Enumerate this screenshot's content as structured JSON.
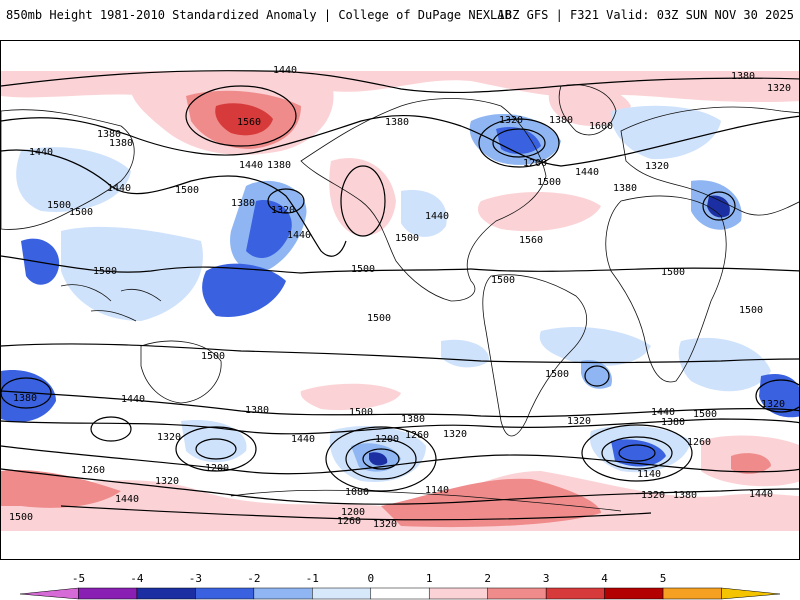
{
  "header": {
    "title_left": "850mb Height 1981-2010 Standardized Anomaly | College of DuPage NEXLAB",
    "title_right": "18Z GFS | F321 Valid: 03Z SUN NOV 30 2025"
  },
  "colorbar": {
    "tick_labels": [
      "-5",
      "-4",
      "-3",
      "-2",
      "-1",
      "0",
      "1",
      "2",
      "3",
      "4",
      "5"
    ],
    "colors": [
      "#d66ad6",
      "#8a1fb3",
      "#1b2fa3",
      "#3a62e0",
      "#8fb6f2",
      "#d7e8fb",
      "#ffffff",
      "#fbd3d6",
      "#ef8b8b",
      "#d63a3a",
      "#b30000",
      "#f5a020",
      "#f5c400"
    ]
  },
  "anomaly_colors": {
    "pos1": "#fbd3d6",
    "pos2": "#ef8b8b",
    "pos3": "#d63a3a",
    "neg1": "#cfe2fb",
    "neg2": "#8fb6f2",
    "neg3": "#3a62e0",
    "neg4": "#1b2fa3"
  },
  "contour_labels": [
    {
      "id": "l1440-top",
      "text": "1440"
    },
    {
      "id": "l1380-ne",
      "text": "1380"
    },
    {
      "id": "l1320-ne",
      "text": "1320"
    },
    {
      "id": "l1380-nw",
      "text": "1380"
    },
    {
      "id": "l1380-nw2",
      "text": "1380"
    },
    {
      "id": "l1440-nw",
      "text": "1440"
    },
    {
      "id": "l1560-pac",
      "text": "1560"
    },
    {
      "id": "l1440-pac",
      "text": "1440"
    },
    {
      "id": "l1380-pac",
      "text": "1380"
    },
    {
      "id": "l1440-asia",
      "text": "1440"
    },
    {
      "id": "l1500-asia",
      "text": "1500"
    },
    {
      "id": "l1500-asia2",
      "text": "1500"
    },
    {
      "id": "l1500-npac",
      "text": "1500"
    },
    {
      "id": "l1380-gulf",
      "text": "1380"
    },
    {
      "id": "l1320-gulf",
      "text": "1320"
    },
    {
      "id": "l1440-gulf",
      "text": "1440"
    },
    {
      "id": "l1380-can",
      "text": "1380"
    },
    {
      "id": "l1320-hud",
      "text": "1320"
    },
    {
      "id": "l1380-grl",
      "text": "1380"
    },
    {
      "id": "l1200-hud",
      "text": "1200"
    },
    {
      "id": "l1440-eu",
      "text": "1440"
    },
    {
      "id": "l1600-eu",
      "text": "1600"
    },
    {
      "id": "l1500-atl",
      "text": "1500"
    },
    {
      "id": "l1380-eu",
      "text": "1380"
    },
    {
      "id": "l1320-eu",
      "text": "1320"
    },
    {
      "id": "l1440-us",
      "text": "1440"
    },
    {
      "id": "l1500-us",
      "text": "1500"
    },
    {
      "id": "l1560-atl",
      "text": "1560"
    },
    {
      "id": "l1500-wpac",
      "text": "1500"
    },
    {
      "id": "l1500-epac",
      "text": "1500"
    },
    {
      "id": "l1500-sam",
      "text": "1500"
    },
    {
      "id": "l1500-spac",
      "text": "1500"
    },
    {
      "id": "l1500-afr",
      "text": "1500"
    },
    {
      "id": "l1500-afr2",
      "text": "1500"
    },
    {
      "id": "l1500-aus",
      "text": "1500"
    },
    {
      "id": "l1500-sam2",
      "text": "1500"
    },
    {
      "id": "l1380-sio",
      "text": "1380"
    },
    {
      "id": "l1440-sio",
      "text": "1440"
    },
    {
      "id": "l1380-aus",
      "text": "1380"
    },
    {
      "id": "l1440-spac",
      "text": "1440"
    },
    {
      "id": "l1500-spac2",
      "text": "1500"
    },
    {
      "id": "l1380-spac",
      "text": "1380"
    },
    {
      "id": "l1320-aus",
      "text": "1320"
    },
    {
      "id": "l1200-aus",
      "text": "1200"
    },
    {
      "id": "l1260-sw",
      "text": "1260"
    },
    {
      "id": "l1320-sw",
      "text": "1320"
    },
    {
      "id": "l1440-sw",
      "text": "1440"
    },
    {
      "id": "l1500-sw",
      "text": "1500"
    },
    {
      "id": "l1200-spac",
      "text": "1200"
    },
    {
      "id": "l1260-spac",
      "text": "1260"
    },
    {
      "id": "l1320-spac2",
      "text": "1320"
    },
    {
      "id": "l1080-spac",
      "text": "1080"
    },
    {
      "id": "l1140-spac",
      "text": "1140"
    },
    {
      "id": "l1200-spac2",
      "text": "1200"
    },
    {
      "id": "l1260-spac2",
      "text": "1260"
    },
    {
      "id": "l1320-spac3",
      "text": "1320"
    },
    {
      "id": "l1320-satl",
      "text": "1320"
    },
    {
      "id": "l1440-satl",
      "text": "1440"
    },
    {
      "id": "l1380-satl",
      "text": "1380"
    },
    {
      "id": "l1500-satl",
      "text": "1500"
    },
    {
      "id": "l1320-satl2",
      "text": "1320"
    },
    {
      "id": "l1260-satl",
      "text": "1260"
    },
    {
      "id": "l1140-satl",
      "text": "1140"
    },
    {
      "id": "l1320-satl3",
      "text": "1320"
    },
    {
      "id": "l1380-satl2",
      "text": "1380"
    },
    {
      "id": "l1440-satl2",
      "text": "1440"
    }
  ]
}
